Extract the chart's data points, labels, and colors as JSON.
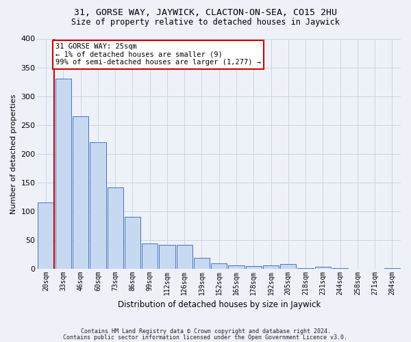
{
  "title1": "31, GORSE WAY, JAYWICK, CLACTON-ON-SEA, CO15 2HU",
  "title2": "Size of property relative to detached houses in Jaywick",
  "xlabel": "Distribution of detached houses by size in Jaywick",
  "ylabel": "Number of detached properties",
  "footer1": "Contains HM Land Registry data © Crown copyright and database right 2024.",
  "footer2": "Contains public sector information licensed under the Open Government Licence v3.0.",
  "bar_labels": [
    "20sqm",
    "33sqm",
    "46sqm",
    "60sqm",
    "73sqm",
    "86sqm",
    "99sqm",
    "112sqm",
    "126sqm",
    "139sqm",
    "152sqm",
    "165sqm",
    "178sqm",
    "192sqm",
    "205sqm",
    "218sqm",
    "231sqm",
    "244sqm",
    "258sqm",
    "271sqm",
    "284sqm"
  ],
  "bar_values": [
    115,
    330,
    265,
    220,
    142,
    90,
    44,
    42,
    42,
    19,
    10,
    6,
    5,
    6,
    8,
    1,
    4,
    1,
    0,
    0,
    1
  ],
  "bar_color": "#c6d9f0",
  "bar_edge_color": "#4472c4",
  "property_label": "31 GORSE WAY: 25sqm",
  "annotation_line1": "← 1% of detached houses are smaller (9)",
  "annotation_line2": "99% of semi-detached houses are larger (1,277) →",
  "vline_color": "#cc0000",
  "annotation_box_color": "#ffffff",
  "annotation_box_edge": "#cc0000",
  "ylim": [
    0,
    400
  ],
  "yticks": [
    0,
    50,
    100,
    150,
    200,
    250,
    300,
    350,
    400
  ],
  "grid_color": "#c8d4e8",
  "background_color": "#eef2f8",
  "title1_fontsize": 9.5,
  "title2_fontsize": 8.5,
  "ylabel_fontsize": 8,
  "xlabel_fontsize": 8.5,
  "tick_fontsize": 7,
  "footer_fontsize": 6.0,
  "annot_fontsize": 7.5
}
